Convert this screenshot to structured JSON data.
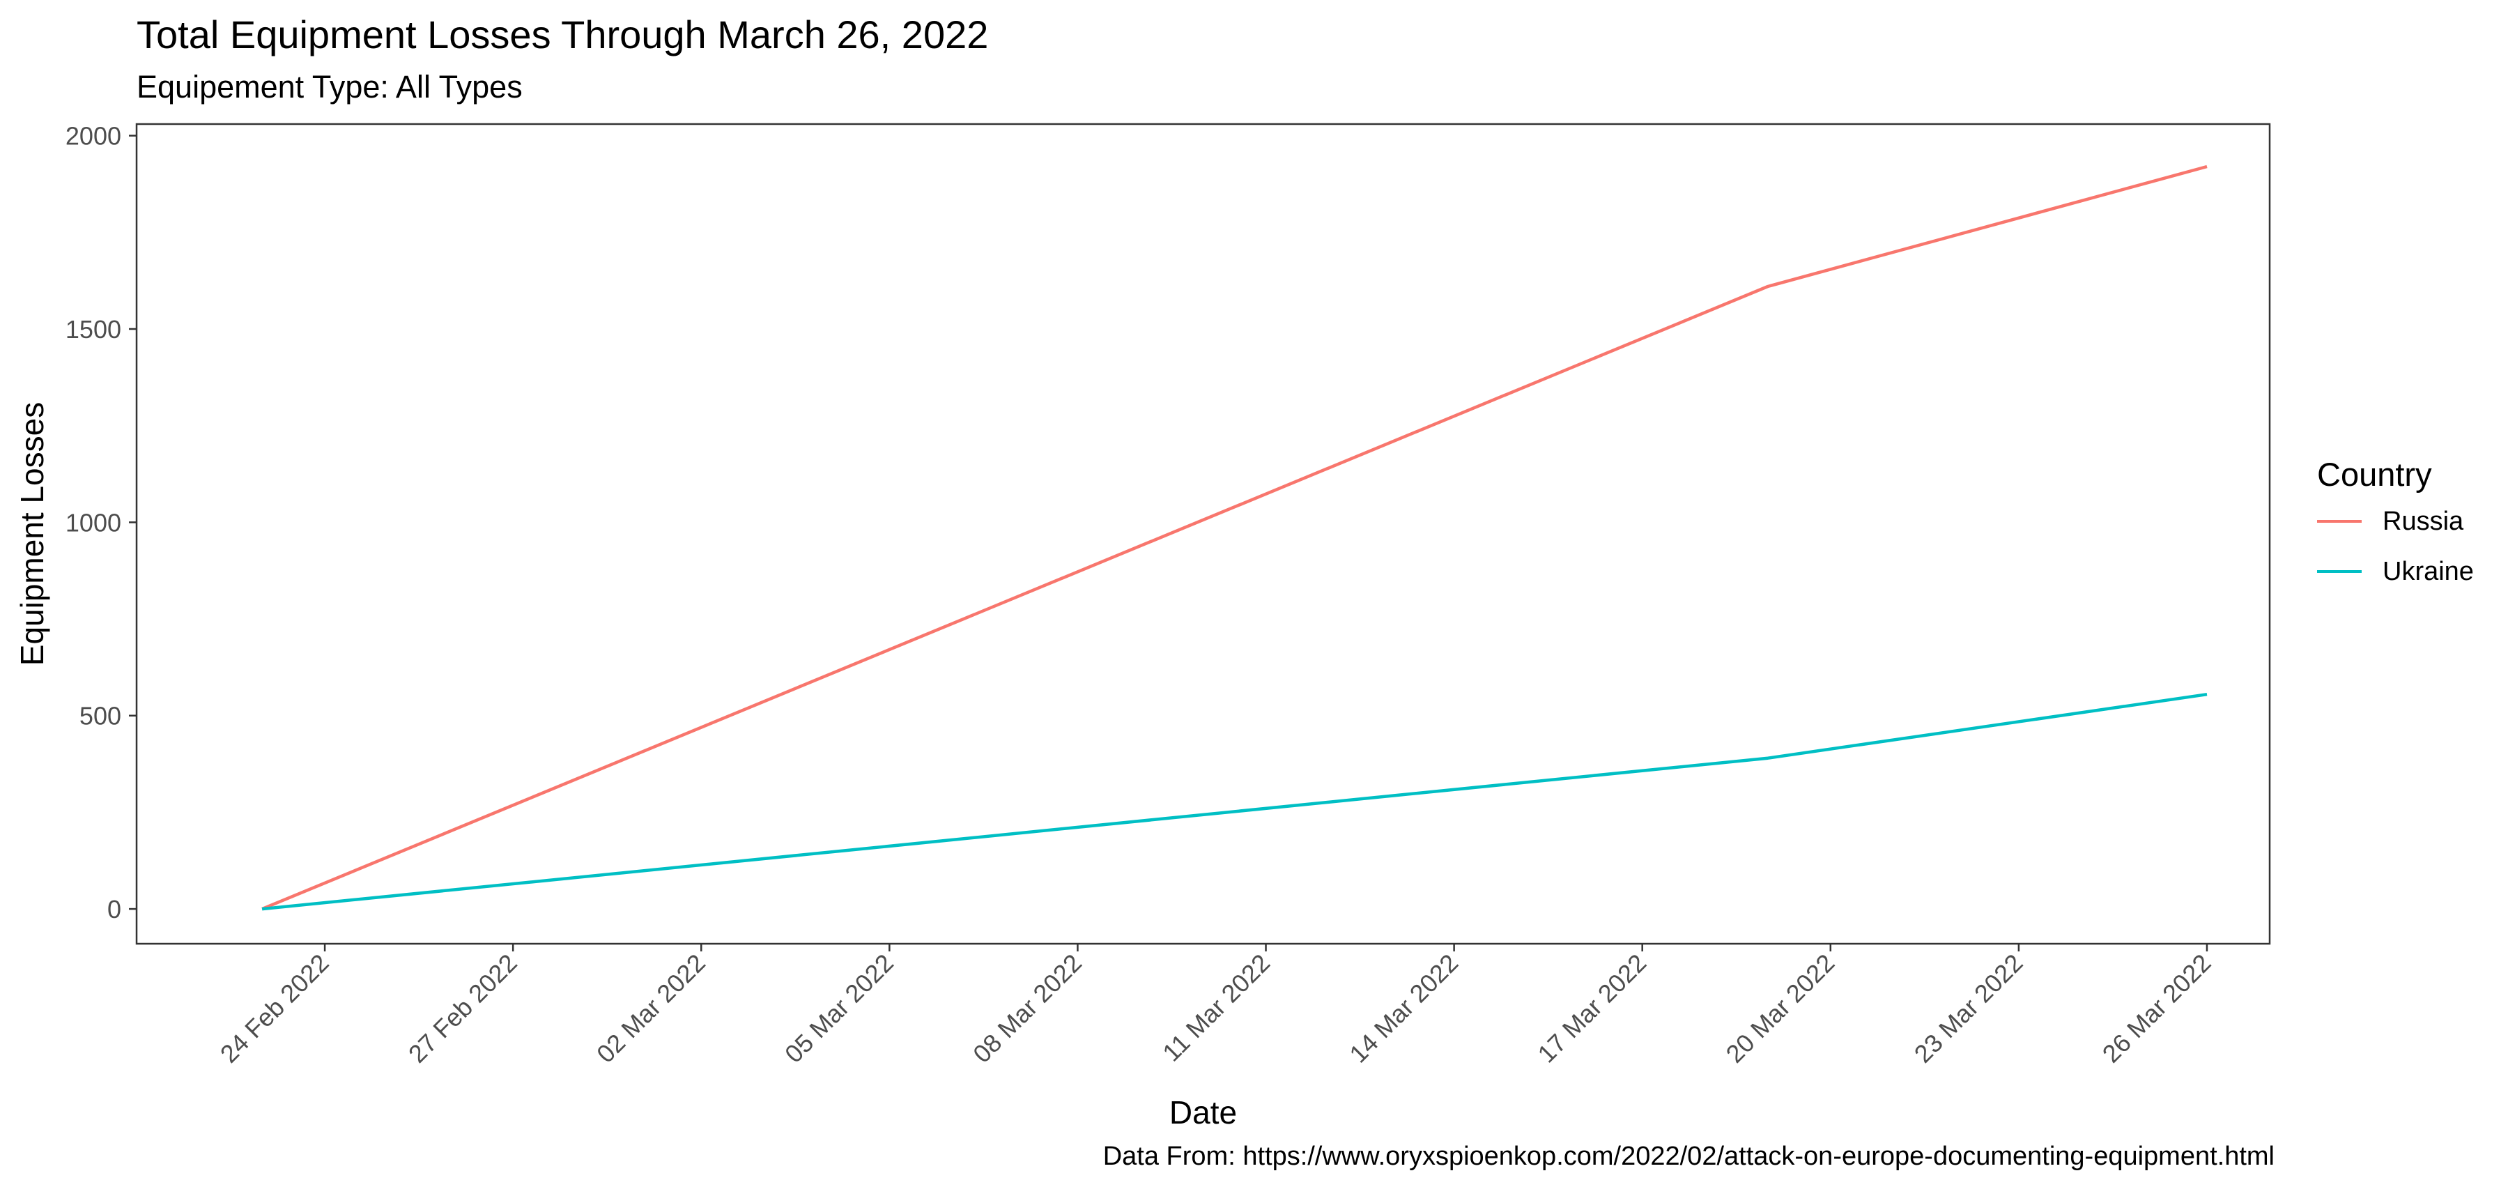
{
  "chart_data": {
    "type": "line",
    "title": "Total Equipment Losses Through March 26, 2022",
    "subtitle": "Equipement Type: All Types",
    "caption": "Data From: https://www.oryxspioenkop.com/2022/02/attack-on-europe-documenting-equipment.html",
    "xlabel": "Date",
    "ylabel": "Equipment Losses",
    "x_tick_labels": [
      "24 Feb 2022",
      "27 Feb 2022",
      "02 Mar 2022",
      "05 Mar 2022",
      "08 Mar 2022",
      "11 Mar 2022",
      "14 Mar 2022",
      "17 Mar 2022",
      "20 Mar 2022",
      "23 Mar 2022",
      "26 Mar 2022"
    ],
    "x_ticks": [
      "2022-02-24",
      "2022-02-27",
      "2022-03-02",
      "2022-03-05",
      "2022-03-08",
      "2022-03-11",
      "2022-03-14",
      "2022-03-17",
      "2022-03-20",
      "2022-03-23",
      "2022-03-26"
    ],
    "y_ticks": [
      0,
      500,
      1000,
      1500,
      2000
    ],
    "xlim": [
      "2022-02-21",
      "2022-03-27"
    ],
    "ylim": [
      -90,
      2030
    ],
    "grid": false,
    "legend": {
      "title": "Country",
      "position": "right"
    },
    "series": [
      {
        "name": "Russia",
        "color": "#F8766D",
        "x": [
          "2022-02-23",
          "2022-03-19",
          "2022-03-26"
        ],
        "values": [
          0,
          1610,
          1920
        ]
      },
      {
        "name": "Ukraine",
        "color": "#00BFC4",
        "x": [
          "2022-02-23",
          "2022-03-19",
          "2022-03-26"
        ],
        "values": [
          0,
          390,
          555
        ]
      }
    ]
  }
}
